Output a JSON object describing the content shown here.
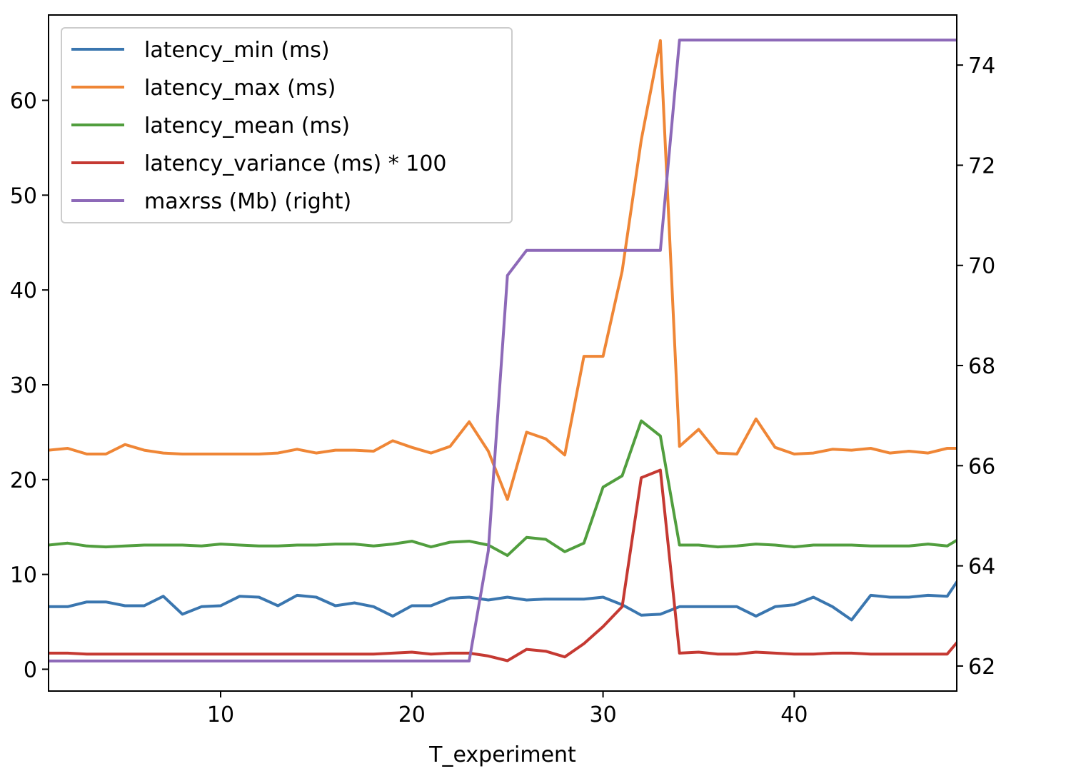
{
  "chart_data": {
    "type": "line",
    "xlabel": "T_experiment",
    "xlim": [
      1,
      48.5
    ],
    "ylim_left": [
      -2.3,
      69.0
    ],
    "ylim_right": [
      61.5,
      75.0
    ],
    "x_ticks": [
      10,
      20,
      30,
      40
    ],
    "y_left_ticks": [
      0,
      10,
      20,
      30,
      40,
      50,
      60
    ],
    "y_right_ticks": [
      62,
      64,
      66,
      68,
      70,
      72,
      74
    ],
    "legend_position": "upper-left",
    "x": [
      1,
      2,
      3,
      4,
      5,
      6,
      7,
      8,
      9,
      10,
      11,
      12,
      13,
      14,
      15,
      16,
      17,
      18,
      19,
      20,
      21,
      22,
      23,
      24,
      25,
      26,
      27,
      28,
      29,
      30,
      31,
      32,
      33,
      34,
      35,
      36,
      37,
      38,
      39,
      40,
      41,
      42,
      43,
      44,
      45,
      46,
      47,
      48,
      48.5
    ],
    "series": [
      {
        "name": "latency_min (ms)",
        "axis": "left",
        "color": "#3a76af",
        "values": [
          6.6,
          6.6,
          7.1,
          7.1,
          6.7,
          6.7,
          7.7,
          5.8,
          6.6,
          6.7,
          7.7,
          7.6,
          6.7,
          7.8,
          7.6,
          6.7,
          7.0,
          6.6,
          5.6,
          6.7,
          6.7,
          7.5,
          7.6,
          7.3,
          7.6,
          7.3,
          7.4,
          7.4,
          7.4,
          7.6,
          6.8,
          5.7,
          5.8,
          6.6,
          6.6,
          6.6,
          6.6,
          5.6,
          6.6,
          6.8,
          7.6,
          6.6,
          5.2,
          7.8,
          7.6,
          7.6,
          7.8,
          7.7,
          9.2
        ]
      },
      {
        "name": "latency_max (ms)",
        "axis": "left",
        "color": "#ef8636",
        "values": [
          23.1,
          23.3,
          22.7,
          22.7,
          23.7,
          23.1,
          22.8,
          22.7,
          22.7,
          22.7,
          22.7,
          22.7,
          22.8,
          23.2,
          22.8,
          23.1,
          23.1,
          23.0,
          24.1,
          23.4,
          22.8,
          23.5,
          26.1,
          23.0,
          17.9,
          25.0,
          24.3,
          22.6,
          33.0,
          33.0,
          42.0,
          55.8,
          66.3,
          23.5,
          25.3,
          22.8,
          22.7,
          26.4,
          23.4,
          22.7,
          22.8,
          23.2,
          23.1,
          23.3,
          22.8,
          23.0,
          22.8,
          23.3,
          23.3
        ]
      },
      {
        "name": "latency_mean (ms)",
        "axis": "left",
        "color": "#519e3e",
        "values": [
          13.1,
          13.3,
          13.0,
          12.9,
          13.0,
          13.1,
          13.1,
          13.1,
          13.0,
          13.2,
          13.1,
          13.0,
          13.0,
          13.1,
          13.1,
          13.2,
          13.2,
          13.0,
          13.2,
          13.5,
          12.9,
          13.4,
          13.5,
          13.1,
          12.0,
          13.9,
          13.7,
          12.4,
          13.3,
          19.2,
          20.4,
          26.2,
          24.6,
          13.1,
          13.1,
          12.9,
          13.0,
          13.2,
          13.1,
          12.9,
          13.1,
          13.1,
          13.1,
          13.0,
          13.0,
          13.0,
          13.2,
          13.0,
          13.6
        ]
      },
      {
        "name": "latency_variance (ms) * 100",
        "axis": "left",
        "color": "#c53932",
        "values": [
          1.7,
          1.7,
          1.6,
          1.6,
          1.6,
          1.6,
          1.6,
          1.6,
          1.6,
          1.6,
          1.6,
          1.6,
          1.6,
          1.6,
          1.6,
          1.6,
          1.6,
          1.6,
          1.7,
          1.8,
          1.6,
          1.7,
          1.7,
          1.4,
          0.9,
          2.1,
          1.9,
          1.3,
          2.7,
          4.5,
          6.6,
          20.2,
          21.0,
          1.7,
          1.8,
          1.6,
          1.6,
          1.8,
          1.7,
          1.6,
          1.6,
          1.7,
          1.7,
          1.6,
          1.6,
          1.6,
          1.6,
          1.6,
          2.8
        ]
      },
      {
        "name": "maxrss (Mb) (right)",
        "axis": "right",
        "color": "#8d69b8",
        "x": [
          1,
          23,
          24,
          25,
          26,
          33,
          34,
          48.5
        ],
        "values": [
          62.1,
          62.1,
          64.3,
          69.8,
          70.3,
          70.3,
          74.5,
          74.5
        ]
      }
    ]
  }
}
